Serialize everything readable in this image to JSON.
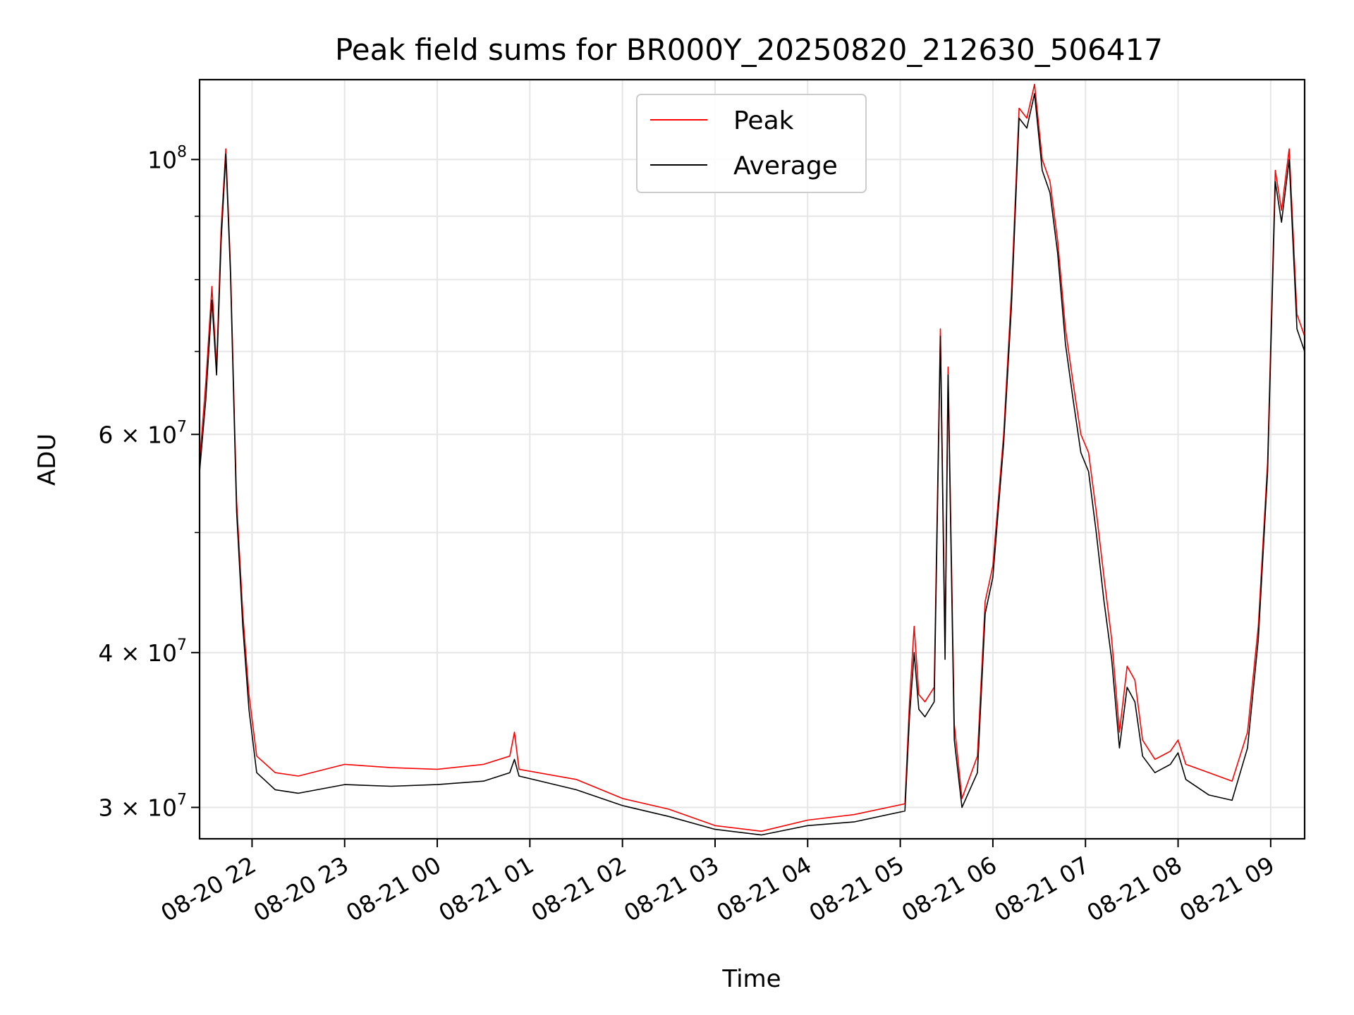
{
  "chart_data": {
    "type": "line",
    "title": "Peak field sums for BR000Y_20250820_212630_506417",
    "xlabel": "Time",
    "ylabel": "ADU",
    "yscale": "log",
    "ylim": [
      28300000,
      116000000
    ],
    "xlim": [
      "2025-08-20 21:26",
      "2025-08-21 09:22"
    ],
    "grid": true,
    "legend_position": "upper center",
    "x_ticks": [
      {
        "t": "2025-08-20 22:00",
        "label": "08-20 22"
      },
      {
        "t": "2025-08-20 23:00",
        "label": "08-20 23"
      },
      {
        "t": "2025-08-21 00:00",
        "label": "08-21 00"
      },
      {
        "t": "2025-08-21 01:00",
        "label": "08-21 01"
      },
      {
        "t": "2025-08-21 02:00",
        "label": "08-21 02"
      },
      {
        "t": "2025-08-21 03:00",
        "label": "08-21 03"
      },
      {
        "t": "2025-08-21 04:00",
        "label": "08-21 04"
      },
      {
        "t": "2025-08-21 05:00",
        "label": "08-21 05"
      },
      {
        "t": "2025-08-21 06:00",
        "label": "08-21 06"
      },
      {
        "t": "2025-08-21 07:00",
        "label": "08-21 07"
      },
      {
        "t": "2025-08-21 08:00",
        "label": "08-21 08"
      },
      {
        "t": "2025-08-21 09:00",
        "label": "08-21 09"
      }
    ],
    "y_major_ticks": [
      {
        "v": 30000000,
        "mant": "3",
        "exp": "7"
      },
      {
        "v": 40000000,
        "mant": "4",
        "exp": "7"
      },
      {
        "v": 60000000,
        "mant": "6",
        "exp": "7"
      },
      {
        "v": 100000000,
        "mant": "",
        "exp": "8"
      }
    ],
    "y_minor_ticks": [
      50000000,
      70000000,
      80000000,
      90000000
    ],
    "series": [
      {
        "name": "Peak",
        "color": "#ff0000",
        "points": [
          [
            "2025-08-20 21:26",
            57000000
          ],
          [
            "2025-08-20 21:30",
            66000000
          ],
          [
            "2025-08-20 21:34",
            79000000
          ],
          [
            "2025-08-20 21:37",
            68000000
          ],
          [
            "2025-08-20 21:40",
            88000000
          ],
          [
            "2025-08-20 21:43",
            102000000
          ],
          [
            "2025-08-20 21:46",
            82000000
          ],
          [
            "2025-08-20 21:50",
            53000000
          ],
          [
            "2025-08-20 21:54",
            43000000
          ],
          [
            "2025-08-20 21:58",
            37000000
          ],
          [
            "2025-08-20 22:03",
            33000000
          ],
          [
            "2025-08-20 22:15",
            32000000
          ],
          [
            "2025-08-20 22:30",
            31800000
          ],
          [
            "2025-08-20 23:00",
            32500000
          ],
          [
            "2025-08-20 23:30",
            32300000
          ],
          [
            "2025-08-21 00:00",
            32200000
          ],
          [
            "2025-08-21 00:30",
            32500000
          ],
          [
            "2025-08-21 00:47",
            33000000
          ],
          [
            "2025-08-21 00:50",
            34500000
          ],
          [
            "2025-08-21 00:53",
            32200000
          ],
          [
            "2025-08-21 01:30",
            31600000
          ],
          [
            "2025-08-21 02:00",
            30500000
          ],
          [
            "2025-08-21 02:30",
            29900000
          ],
          [
            "2025-08-21 03:00",
            29000000
          ],
          [
            "2025-08-21 03:30",
            28700000
          ],
          [
            "2025-08-21 04:00",
            29300000
          ],
          [
            "2025-08-21 04:30",
            29600000
          ],
          [
            "2025-08-21 05:03",
            30200000
          ],
          [
            "2025-08-21 05:06",
            36500000
          ],
          [
            "2025-08-21 05:09",
            42000000
          ],
          [
            "2025-08-21 05:12",
            37000000
          ],
          [
            "2025-08-21 05:16",
            36500000
          ],
          [
            "2025-08-21 05:22",
            37500000
          ],
          [
            "2025-08-21 05:26",
            73000000
          ],
          [
            "2025-08-21 05:29",
            40500000
          ],
          [
            "2025-08-21 05:31",
            68000000
          ],
          [
            "2025-08-21 05:35",
            35000000
          ],
          [
            "2025-08-21 05:40",
            30500000
          ],
          [
            "2025-08-21 05:50",
            33000000
          ],
          [
            "2025-08-21 05:55",
            44000000
          ],
          [
            "2025-08-21 06:00",
            47000000
          ],
          [
            "2025-08-21 06:07",
            60000000
          ],
          [
            "2025-08-21 06:12",
            78000000
          ],
          [
            "2025-08-21 06:17",
            110000000
          ],
          [
            "2025-08-21 06:22",
            108000000
          ],
          [
            "2025-08-21 06:27",
            115000000
          ],
          [
            "2025-08-21 06:32",
            100000000
          ],
          [
            "2025-08-21 06:37",
            96000000
          ],
          [
            "2025-08-21 06:42",
            86000000
          ],
          [
            "2025-08-21 06:47",
            73000000
          ],
          [
            "2025-08-21 06:52",
            66000000
          ],
          [
            "2025-08-21 06:57",
            60000000
          ],
          [
            "2025-08-21 07:02",
            58000000
          ],
          [
            "2025-08-21 07:07",
            52000000
          ],
          [
            "2025-08-21 07:12",
            46000000
          ],
          [
            "2025-08-21 07:17",
            41000000
          ],
          [
            "2025-08-21 07:22",
            34500000
          ],
          [
            "2025-08-21 07:27",
            39000000
          ],
          [
            "2025-08-21 07:32",
            38000000
          ],
          [
            "2025-08-21 07:37",
            34000000
          ],
          [
            "2025-08-21 07:45",
            32800000
          ],
          [
            "2025-08-21 07:55",
            33300000
          ],
          [
            "2025-08-21 08:00",
            34000000
          ],
          [
            "2025-08-21 08:05",
            32500000
          ],
          [
            "2025-08-21 08:20",
            32000000
          ],
          [
            "2025-08-21 08:35",
            31500000
          ],
          [
            "2025-08-21 08:45",
            34500000
          ],
          [
            "2025-08-21 08:52",
            42000000
          ],
          [
            "2025-08-21 08:58",
            57000000
          ],
          [
            "2025-08-21 09:03",
            98000000
          ],
          [
            "2025-08-21 09:07",
            91000000
          ],
          [
            "2025-08-21 09:12",
            102000000
          ],
          [
            "2025-08-21 09:17",
            75000000
          ],
          [
            "2025-08-21 09:22",
            72000000
          ]
        ]
      },
      {
        "name": "Average",
        "color": "#000000",
        "points": [
          [
            "2025-08-20 21:26",
            56000000
          ],
          [
            "2025-08-20 21:30",
            64000000
          ],
          [
            "2025-08-20 21:34",
            77000000
          ],
          [
            "2025-08-20 21:37",
            67000000
          ],
          [
            "2025-08-20 21:40",
            86000000
          ],
          [
            "2025-08-20 21:43",
            101000000
          ],
          [
            "2025-08-20 21:46",
            81000000
          ],
          [
            "2025-08-20 21:50",
            52000000
          ],
          [
            "2025-08-20 21:54",
            42000000
          ],
          [
            "2025-08-20 21:58",
            36000000
          ],
          [
            "2025-08-20 22:03",
            32000000
          ],
          [
            "2025-08-20 22:15",
            31000000
          ],
          [
            "2025-08-20 22:30",
            30800000
          ],
          [
            "2025-08-20 23:00",
            31300000
          ],
          [
            "2025-08-20 23:30",
            31200000
          ],
          [
            "2025-08-21 00:00",
            31300000
          ],
          [
            "2025-08-21 00:30",
            31500000
          ],
          [
            "2025-08-21 00:47",
            32000000
          ],
          [
            "2025-08-21 00:50",
            32800000
          ],
          [
            "2025-08-21 00:53",
            31800000
          ],
          [
            "2025-08-21 01:30",
            31000000
          ],
          [
            "2025-08-21 02:00",
            30100000
          ],
          [
            "2025-08-21 02:30",
            29500000
          ],
          [
            "2025-08-21 03:00",
            28800000
          ],
          [
            "2025-08-21 03:30",
            28500000
          ],
          [
            "2025-08-21 04:00",
            29000000
          ],
          [
            "2025-08-21 04:30",
            29200000
          ],
          [
            "2025-08-21 05:03",
            29800000
          ],
          [
            "2025-08-21 05:06",
            35500000
          ],
          [
            "2025-08-21 05:09",
            40000000
          ],
          [
            "2025-08-21 05:12",
            36000000
          ],
          [
            "2025-08-21 05:16",
            35500000
          ],
          [
            "2025-08-21 05:22",
            36500000
          ],
          [
            "2025-08-21 05:26",
            72000000
          ],
          [
            "2025-08-21 05:29",
            39500000
          ],
          [
            "2025-08-21 05:31",
            67000000
          ],
          [
            "2025-08-21 05:35",
            34000000
          ],
          [
            "2025-08-21 05:40",
            30000000
          ],
          [
            "2025-08-21 05:50",
            32000000
          ],
          [
            "2025-08-21 05:55",
            43000000
          ],
          [
            "2025-08-21 06:00",
            46000000
          ],
          [
            "2025-08-21 06:07",
            59000000
          ],
          [
            "2025-08-21 06:12",
            76000000
          ],
          [
            "2025-08-21 06:17",
            108000000
          ],
          [
            "2025-08-21 06:22",
            106000000
          ],
          [
            "2025-08-21 06:27",
            113000000
          ],
          [
            "2025-08-21 06:32",
            98000000
          ],
          [
            "2025-08-21 06:37",
            94000000
          ],
          [
            "2025-08-21 06:42",
            84000000
          ],
          [
            "2025-08-21 06:47",
            71000000
          ],
          [
            "2025-08-21 06:52",
            64000000
          ],
          [
            "2025-08-21 06:57",
            58000000
          ],
          [
            "2025-08-21 07:02",
            56000000
          ],
          [
            "2025-08-21 07:07",
            50000000
          ],
          [
            "2025-08-21 07:12",
            44000000
          ],
          [
            "2025-08-21 07:17",
            39500000
          ],
          [
            "2025-08-21 07:22",
            33500000
          ],
          [
            "2025-08-21 07:27",
            37500000
          ],
          [
            "2025-08-21 07:32",
            36500000
          ],
          [
            "2025-08-21 07:37",
            33000000
          ],
          [
            "2025-08-21 07:45",
            32000000
          ],
          [
            "2025-08-21 07:55",
            32500000
          ],
          [
            "2025-08-21 08:00",
            33200000
          ],
          [
            "2025-08-21 08:05",
            31600000
          ],
          [
            "2025-08-21 08:20",
            30700000
          ],
          [
            "2025-08-21 08:35",
            30400000
          ],
          [
            "2025-08-21 08:45",
            33500000
          ],
          [
            "2025-08-21 08:52",
            41000000
          ],
          [
            "2025-08-21 08:58",
            56000000
          ],
          [
            "2025-08-21 09:03",
            96000000
          ],
          [
            "2025-08-21 09:07",
            89000000
          ],
          [
            "2025-08-21 09:12",
            100000000
          ],
          [
            "2025-08-21 09:17",
            73000000
          ],
          [
            "2025-08-21 09:22",
            70000000
          ]
        ]
      }
    ]
  }
}
